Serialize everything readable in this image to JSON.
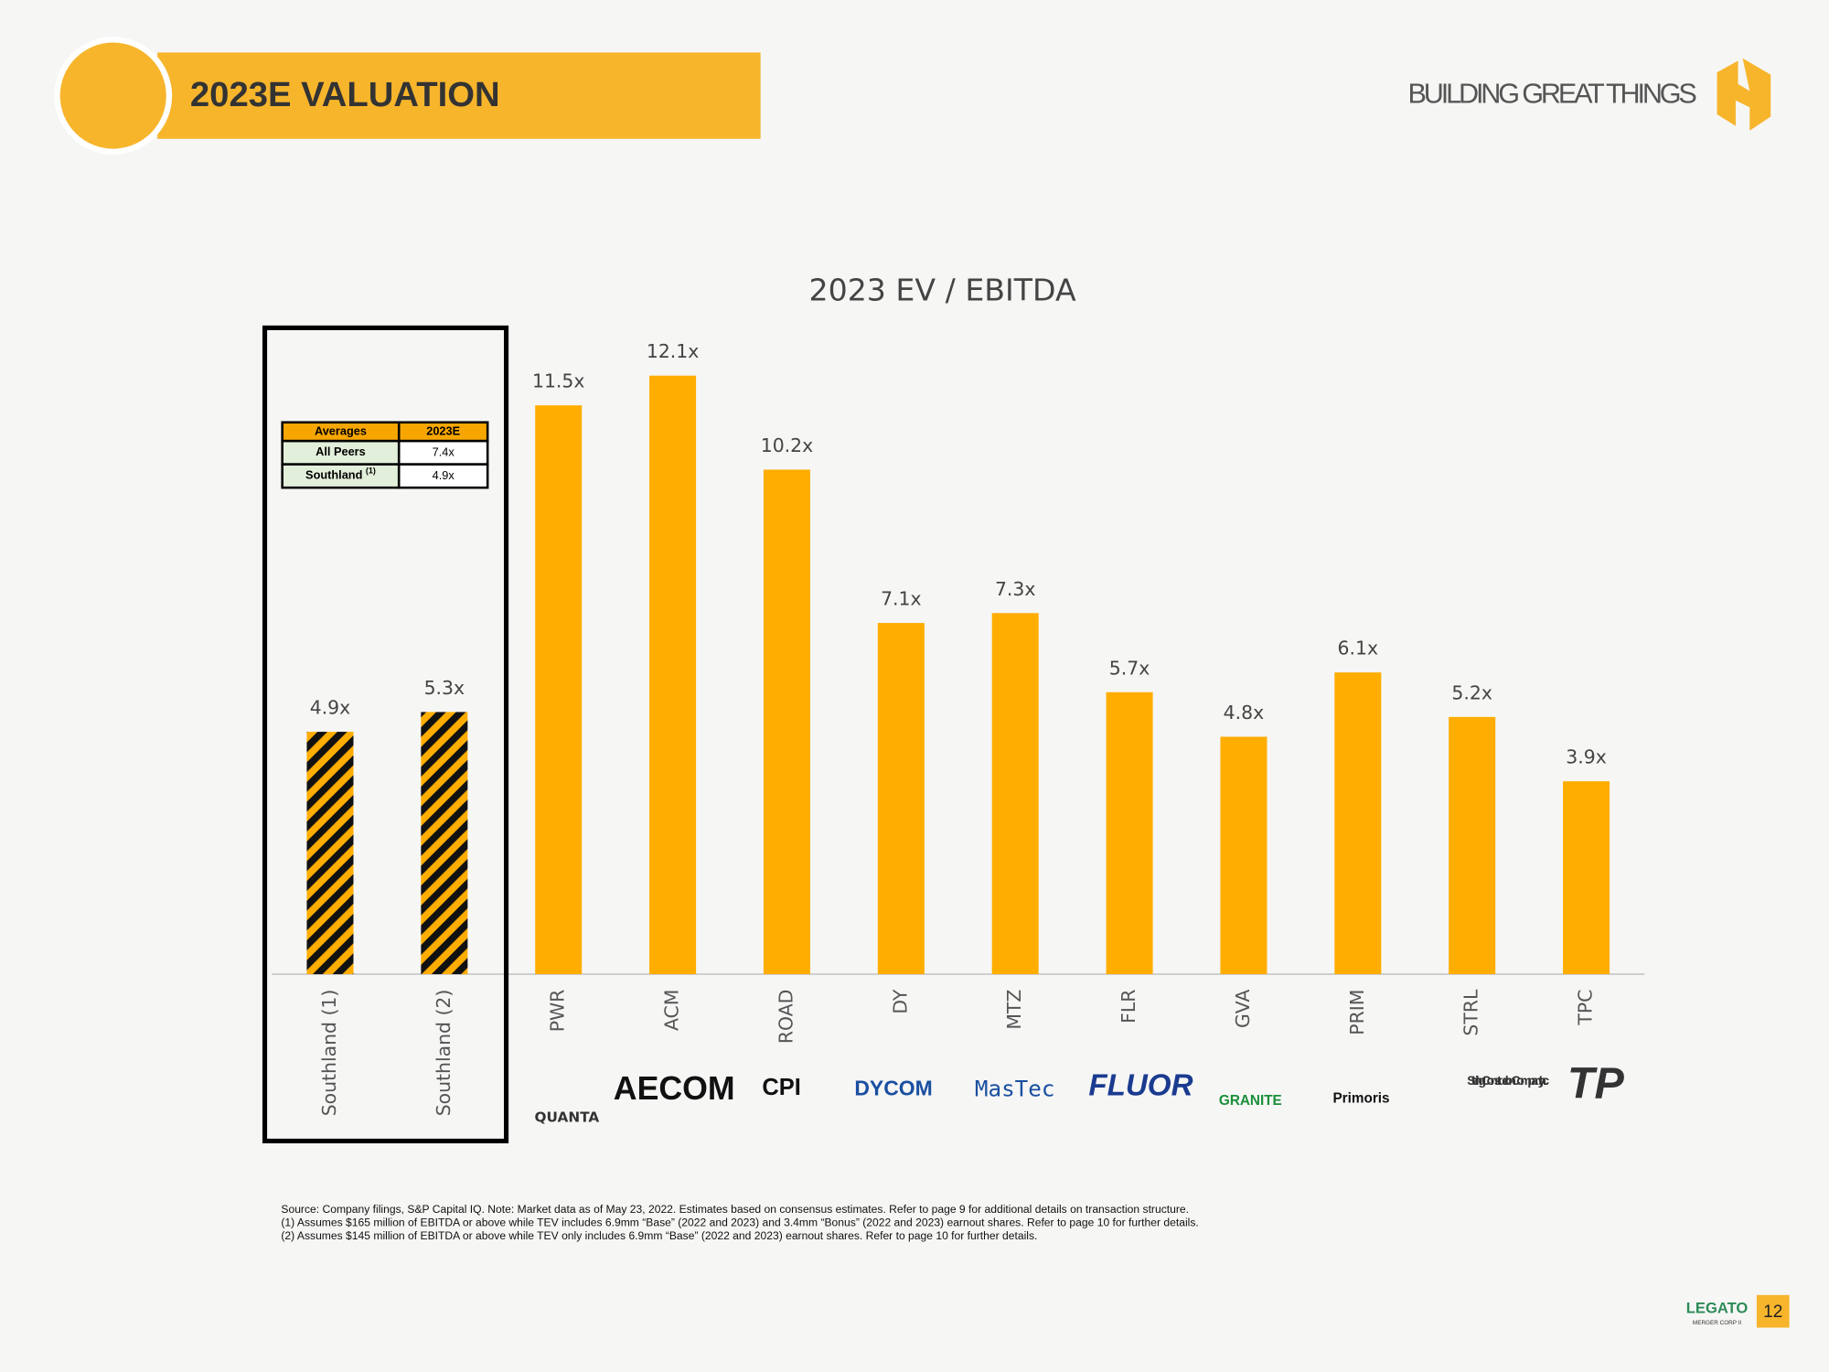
{
  "header": {
    "title": "2023E VALUATION",
    "tagline": "BUILDING GREAT THINGS"
  },
  "chart_data": {
    "type": "bar",
    "title": "2023 EV / EBITDA",
    "categories": [
      "Southland (1)",
      "Southland (2)",
      "PWR",
      "ACM",
      "ROAD",
      "DY",
      "MTZ",
      "FLR",
      "GVA",
      "PRIM",
      "STRL",
      "TPC"
    ],
    "values": [
      4.9,
      5.3,
      11.5,
      12.1,
      10.2,
      7.1,
      7.3,
      5.7,
      4.8,
      6.1,
      5.2,
      3.9
    ],
    "value_labels": [
      "4.9x",
      "5.3x",
      "11.5x",
      "12.1x",
      "10.2x",
      "7.1x",
      "7.3x",
      "5.7x",
      "4.8x",
      "6.1x",
      "5.2x",
      "3.9x"
    ],
    "color": "#ffad00",
    "hatched": [
      true,
      true,
      false,
      false,
      false,
      false,
      false,
      false,
      false,
      false,
      false,
      false
    ]
  },
  "table": {
    "header": [
      "Averages",
      "2023E"
    ],
    "rows": [
      {
        "label": "All Peers",
        "value": "7.4x"
      },
      {
        "label": "Southland",
        "note": "(1)",
        "value": "4.9x"
      }
    ]
  },
  "logos": [
    "QUANTA",
    "AECOM",
    "CPI",
    "DYCOM",
    "MasTec",
    "FLUOR",
    "GRANITE",
    "Primoris",
    "Sterling Construction Company, Inc.",
    "TP"
  ],
  "footnotes": [
    "Source: Company filings, S&P Capital IQ. Note: Market data as of May 23, 2022. Estimates based on consensus estimates. Refer to page 9 for additional details on transaction structure.",
    "(1)      Assumes  $165 million of EBITDA or above while TEV includes 6.9mm “Base” (2022 and 2023) and 3.4mm “Bonus” (2022 and 2023) earnout shares. Refer to page 10 for further details.",
    "(2)      Assumes  $145 million of EBITDA or above while TEV only includes 6.9mm “Base” (2022 and 2023) earnout shares. Refer to page 10 for further details."
  ],
  "footer": {
    "brand": "LEGATO",
    "sub": "MERGER CORP II",
    "page": "12"
  }
}
